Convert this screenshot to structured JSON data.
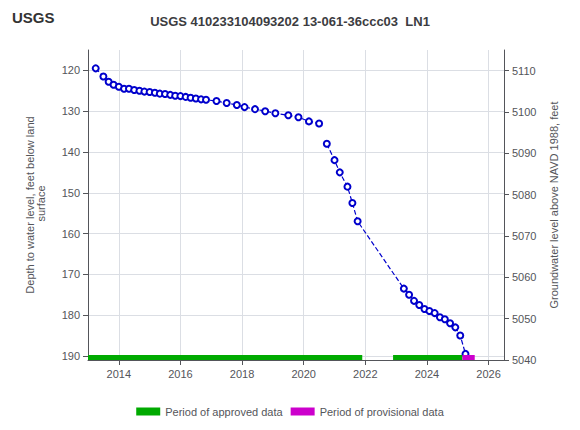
{
  "chart_data": {
    "type": "line",
    "title": "USGS 410233104093202 13-061-36ccc03  LN1",
    "annotations": [
      {
        "text": "USGS"
      }
    ],
    "ylabel": "Depth to water level, feet below land\n surface",
    "y2label": "Groundwater level above NAVD 1988, feet",
    "xlim": [
      2013.0,
      2026.5
    ],
    "xticks": [
      2014,
      2016,
      2018,
      2020,
      2022,
      2024,
      2026
    ],
    "ylim": [
      191,
      115
    ],
    "yticks": [
      120,
      130,
      140,
      150,
      160,
      170,
      180,
      190
    ],
    "y2lim": [
      5040,
      5115
    ],
    "y2ticks": [
      5110,
      5100,
      5090,
      5080,
      5070,
      5060,
      5050,
      5040
    ],
    "grid": true,
    "legend": "bottom",
    "series": [
      {
        "type": "line",
        "color": "#0000cc",
        "marker": "open_circle",
        "line_style": "dashed",
        "x": [
          2013.25,
          2013.5,
          2013.67,
          2013.83,
          2014.0,
          2014.17,
          2014.33,
          2014.5,
          2014.67,
          2014.83,
          2015.0,
          2015.17,
          2015.33,
          2015.5,
          2015.67,
          2015.83,
          2016.0,
          2016.17,
          2016.33,
          2016.5,
          2016.67,
          2016.83,
          2017.17,
          2017.5,
          2017.83,
          2018.08,
          2018.42,
          2018.75,
          2019.08,
          2019.5,
          2019.83,
          2020.17,
          2020.5
        ],
        "values": [
          119.5,
          121.5,
          122.8,
          123.5,
          124.0,
          124.5,
          124.5,
          124.8,
          125.0,
          125.2,
          125.3,
          125.5,
          125.7,
          125.8,
          126.0,
          126.2,
          126.3,
          126.5,
          126.7,
          126.9,
          127.1,
          127.2,
          127.5,
          128.0,
          128.5,
          129.0,
          129.5,
          130.0,
          130.5,
          131.0,
          131.5,
          132.5,
          133.0
        ]
      },
      {
        "type": "line",
        "color": "#0000cc",
        "marker": "open_circle",
        "line_style": "dashed",
        "x": [
          2020.75,
          2021.0,
          2021.17,
          2021.42,
          2021.58,
          2021.75,
          2023.25,
          2023.42,
          2023.58,
          2023.75,
          2023.92,
          2024.08,
          2024.25,
          2024.42,
          2024.58,
          2024.75,
          2024.92,
          2025.08,
          2025.25
        ],
        "values": [
          138.0,
          142.0,
          145.0,
          148.5,
          152.5,
          157.0,
          173.5,
          175.0,
          176.5,
          177.5,
          178.5,
          179.0,
          179.5,
          180.5,
          181.0,
          182.0,
          183.0,
          185.0,
          189.5
        ]
      },
      {
        "type": "period",
        "name": "Period of approved data",
        "color": "#00aa00",
        "segments": [
          [
            2013.0,
            2021.9
          ],
          [
            2022.9,
            2025.15
          ]
        ]
      },
      {
        "type": "period",
        "name": "Period of provisional data",
        "color": "#cc00cc",
        "segments": [
          [
            2025.15,
            2025.55
          ]
        ]
      }
    ]
  }
}
